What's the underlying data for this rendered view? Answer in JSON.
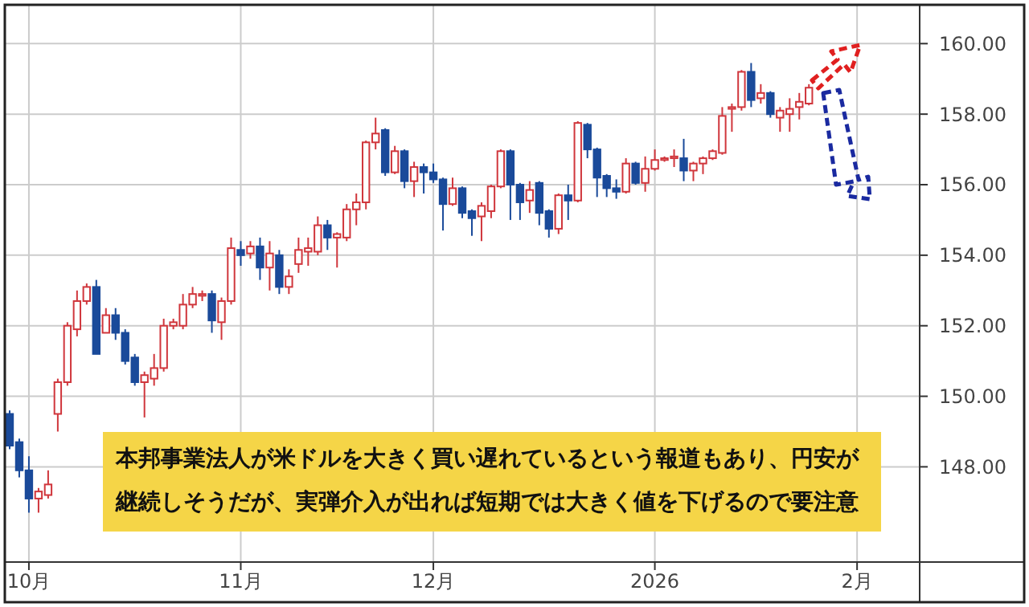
{
  "chart_data": {
    "type": "candlestick",
    "categories": [
      null,
      null,
      "10月",
      null,
      null,
      null,
      null,
      null,
      null,
      null,
      null,
      null,
      null,
      null,
      null,
      null,
      null,
      null,
      null,
      null,
      null,
      null,
      null,
      null,
      "11月",
      null,
      null,
      null,
      null,
      null,
      null,
      null,
      null,
      null,
      null,
      null,
      null,
      null,
      null,
      null,
      null,
      null,
      null,
      null,
      "12月",
      null,
      null,
      null,
      null,
      null,
      null,
      null,
      null,
      null,
      null,
      null,
      null,
      null,
      null,
      null,
      null,
      null,
      null,
      null,
      null,
      null,
      null,
      "2026",
      null,
      null,
      null,
      null,
      null,
      null,
      null,
      null,
      null,
      null,
      null,
      null,
      null,
      null,
      null,
      null,
      null,
      null,
      null,
      null,
      "2月",
      null,
      null,
      null,
      null,
      null,
      null
    ],
    "ohlc": [
      [
        149.5,
        149.6,
        148.5,
        148.6
      ],
      [
        148.7,
        148.8,
        147.7,
        147.9
      ],
      [
        147.9,
        148.3,
        146.7,
        147.1
      ],
      [
        147.1,
        147.4,
        146.7,
        147.3
      ],
      [
        147.2,
        147.9,
        147.1,
        147.5
      ],
      [
        149.5,
        150.5,
        149.0,
        150.4
      ],
      [
        150.4,
        152.1,
        150.3,
        152.0
      ],
      [
        151.9,
        153.0,
        151.7,
        152.7
      ],
      [
        152.7,
        153.2,
        152.6,
        153.1
      ],
      [
        153.1,
        153.3,
        151.2,
        151.2
      ],
      [
        151.8,
        152.5,
        151.8,
        152.3
      ],
      [
        152.3,
        152.5,
        151.6,
        151.8
      ],
      [
        151.8,
        151.9,
        150.9,
        151.0
      ],
      [
        151.1,
        151.2,
        150.3,
        150.4
      ],
      [
        150.4,
        150.7,
        149.4,
        150.6
      ],
      [
        150.5,
        151.2,
        150.3,
        150.8
      ],
      [
        150.8,
        152.2,
        150.7,
        152.0
      ],
      [
        152.0,
        152.2,
        151.9,
        152.1
      ],
      [
        152.0,
        152.9,
        151.9,
        152.6
      ],
      [
        152.6,
        153.1,
        152.5,
        152.9
      ],
      [
        152.85,
        153.0,
        152.7,
        152.9
      ],
      [
        152.9,
        153.0,
        151.8,
        152.15
      ],
      [
        152.1,
        152.8,
        151.6,
        152.7
      ],
      [
        152.7,
        154.5,
        152.6,
        154.2
      ],
      [
        154.15,
        154.4,
        153.7,
        154.0
      ],
      [
        154.05,
        154.4,
        153.9,
        154.25
      ],
      [
        154.25,
        154.5,
        153.3,
        153.65
      ],
      [
        153.65,
        154.4,
        153.0,
        154.05
      ],
      [
        154.0,
        154.15,
        152.9,
        153.1
      ],
      [
        153.1,
        153.6,
        152.9,
        153.4
      ],
      [
        153.75,
        154.5,
        153.5,
        154.15
      ],
      [
        154.1,
        154.5,
        153.7,
        154.2
      ],
      [
        154.1,
        155.1,
        154.0,
        154.85
      ],
      [
        154.85,
        155.0,
        154.15,
        154.5
      ],
      [
        154.5,
        154.65,
        153.65,
        154.6
      ],
      [
        154.5,
        155.45,
        154.4,
        155.3
      ],
      [
        155.3,
        155.75,
        154.85,
        155.5
      ],
      [
        155.5,
        157.25,
        155.3,
        157.2
      ],
      [
        157.2,
        157.9,
        157.0,
        157.45
      ],
      [
        157.55,
        157.6,
        156.25,
        156.35
      ],
      [
        156.35,
        157.1,
        156.3,
        156.95
      ],
      [
        156.95,
        157.0,
        155.9,
        156.1
      ],
      [
        156.1,
        156.65,
        155.65,
        156.5
      ],
      [
        156.5,
        156.6,
        155.75,
        156.35
      ],
      [
        156.35,
        156.6,
        156.05,
        156.15
      ],
      [
        156.15,
        156.2,
        154.7,
        155.45
      ],
      [
        155.45,
        156.2,
        155.4,
        155.9
      ],
      [
        155.9,
        155.95,
        155.05,
        155.2
      ],
      [
        155.25,
        155.3,
        154.55,
        155.05
      ],
      [
        155.1,
        155.5,
        154.4,
        155.4
      ],
      [
        155.25,
        156.0,
        155.05,
        155.95
      ],
      [
        155.95,
        157.0,
        155.9,
        156.95
      ],
      [
        156.95,
        157.0,
        155.0,
        156.0
      ],
      [
        156.0,
        156.05,
        155.0,
        155.5
      ],
      [
        155.55,
        156.1,
        155.2,
        155.85
      ],
      [
        156.05,
        156.1,
        154.85,
        155.2
      ],
      [
        155.25,
        155.3,
        154.5,
        154.75
      ],
      [
        154.75,
        155.75,
        154.6,
        155.7
      ],
      [
        155.7,
        156.0,
        155.0,
        155.55
      ],
      [
        155.55,
        157.8,
        155.5,
        157.75
      ],
      [
        157.7,
        157.75,
        156.75,
        157.0
      ],
      [
        157.0,
        157.05,
        155.65,
        156.2
      ],
      [
        156.25,
        156.3,
        155.65,
        155.9
      ],
      [
        155.9,
        156.15,
        155.6,
        155.8
      ],
      [
        155.8,
        156.75,
        155.75,
        156.6
      ],
      [
        156.6,
        156.65,
        156.0,
        156.05
      ],
      [
        156.05,
        156.8,
        155.8,
        156.45
      ],
      [
        156.45,
        157.0,
        156.4,
        156.7
      ],
      [
        156.7,
        156.8,
        156.65,
        156.75
      ],
      [
        156.75,
        157.0,
        156.5,
        156.8
      ],
      [
        156.75,
        157.3,
        156.1,
        156.4
      ],
      [
        156.4,
        156.65,
        156.1,
        156.6
      ],
      [
        156.6,
        156.8,
        156.3,
        156.75
      ],
      [
        156.75,
        157.0,
        156.7,
        156.95
      ],
      [
        156.9,
        158.2,
        156.85,
        157.95
      ],
      [
        158.15,
        158.3,
        157.5,
        158.2
      ],
      [
        158.2,
        159.25,
        158.1,
        159.2
      ],
      [
        159.2,
        159.45,
        158.2,
        158.4
      ],
      [
        158.45,
        158.85,
        158.3,
        158.6
      ],
      [
        158.6,
        158.65,
        157.9,
        158.0
      ],
      [
        157.9,
        158.2,
        157.5,
        158.1
      ],
      [
        158.0,
        158.45,
        157.5,
        158.15
      ],
      [
        158.2,
        158.6,
        157.85,
        158.35
      ],
      [
        158.3,
        158.85,
        158.25,
        158.75
      ],
      null,
      null,
      null,
      null,
      null,
      null,
      null,
      null,
      null,
      null,
      null
    ],
    "colors": [
      "#1a4a9a",
      "#1a4a9a",
      "#1a4a9a",
      "#d0363c",
      "#d0363c",
      "#d0363c",
      "#d0363c",
      "#d0363c",
      "#d0363c",
      "#1a4a9a",
      "#d0363c",
      "#1a4a9a",
      "#1a4a9a",
      "#1a4a9a",
      "#d0363c",
      "#d0363c",
      "#d0363c",
      "#d0363c",
      "#d0363c",
      "#d0363c",
      "#d0363c",
      "#1a4a9a",
      "#d0363c",
      "#d0363c",
      "#1a4a9a",
      "#d0363c",
      "#1a4a9a",
      "#d0363c",
      "#1a4a9a",
      "#d0363c",
      "#d0363c",
      "#d0363c",
      "#d0363c",
      "#1a4a9a",
      "#d0363c",
      "#d0363c",
      "#d0363c",
      "#d0363c",
      "#d0363c",
      "#1a4a9a",
      "#d0363c",
      "#1a4a9a",
      "#d0363c",
      "#1a4a9a",
      "#1a4a9a",
      "#1a4a9a",
      "#d0363c",
      "#1a4a9a",
      "#1a4a9a",
      "#d0363c",
      "#d0363c",
      "#d0363c",
      "#1a4a9a",
      "#1a4a9a",
      "#d0363c",
      "#1a4a9a",
      "#1a4a9a",
      "#d0363c",
      "#1a4a9a",
      "#d0363c",
      "#1a4a9a",
      "#1a4a9a",
      "#1a4a9a",
      "#1a4a9a",
      "#d0363c",
      "#1a4a9a",
      "#d0363c",
      "#d0363c",
      "#d0363c",
      "#d0363c",
      "#1a4a9a",
      "#d0363c",
      "#d0363c",
      "#d0363c",
      "#d0363c",
      "#d0363c",
      "#d0363c",
      "#1a4a9a",
      "#d0363c",
      "#1a4a9a",
      "#d0363c",
      "#d0363c",
      "#d0363c",
      "#d0363c",
      null,
      null,
      null,
      null,
      null,
      null,
      null,
      null,
      null,
      null,
      null
    ],
    "ylim": [
      145.3,
      161.1
    ],
    "yticks": [
      {
        "value": 148,
        "label": "148.00"
      },
      {
        "value": 150,
        "label": "150.00"
      },
      {
        "value": 152,
        "label": "152.00"
      },
      {
        "value": 154,
        "label": "154.00"
      },
      {
        "value": 156,
        "label": "156.00"
      },
      {
        "value": 158,
        "label": "158.00"
      },
      {
        "value": 160,
        "label": "160.00"
      }
    ],
    "grid": true,
    "annotations": [
      "本邦事業法人が米ドルを大きく買い遅れているという報道もあり、円安が継続しそうだが、実弾介入が出れば短期では大きく値を下げるので要注意"
    ]
  }
}
